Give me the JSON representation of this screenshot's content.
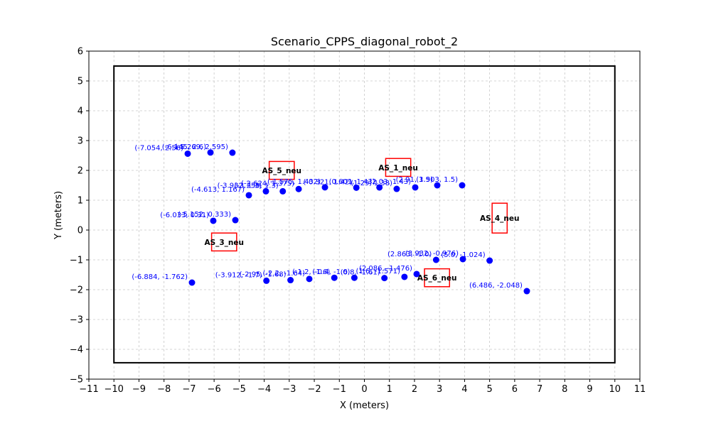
{
  "chart_data": {
    "type": "scatter",
    "title": "Scenario_CPPS_diagonal_robot_2",
    "xlabel": "X (meters)",
    "ylabel": "Y (meters)",
    "xlim": [
      -11,
      11
    ],
    "ylim": [
      -5,
      6
    ],
    "xticks": [
      -11,
      -10,
      -9,
      -8,
      -7,
      -6,
      -5,
      -4,
      -3,
      -2,
      -1,
      0,
      1,
      2,
      3,
      4,
      5,
      6,
      7,
      8,
      9,
      10,
      11
    ],
    "yticks": [
      -5,
      -4,
      -3,
      -2,
      -1,
      0,
      1,
      2,
      3,
      4,
      5,
      6
    ],
    "grid": true,
    "boundary": {
      "x": [
        -10,
        10
      ],
      "y": [
        -4.45,
        5.5
      ],
      "color": "#000000"
    },
    "point_color": "#0000ff",
    "station_color": "#ff0000",
    "points": [
      {
        "x": -7.054,
        "y": 2.56,
        "label": "(-7.054, 2.56)"
      },
      {
        "x": -6.145,
        "y": 2.6,
        "label": "(-6.145, 2.6)"
      },
      {
        "x": -5.269,
        "y": 2.595,
        "label": "(-5.269, 2.595)"
      },
      {
        "x": -3.932,
        "y": 1.3,
        "label": "(-3.932, 1.3)"
      },
      {
        "x": -3.258,
        "y": 1.3,
        "label": "(-3.258, 1.3)"
      },
      {
        "x": -2.624,
        "y": 1.375,
        "label": "(-2.624, 1.375)"
      },
      {
        "x": -4.613,
        "y": 1.167,
        "label": "(-4.613, 1.167)"
      },
      {
        "x": -1.575,
        "y": 1.432,
        "label": "(-1.575, 1.432)"
      },
      {
        "x": -0.321,
        "y": 1.42,
        "label": "(-0.321, 1.42)"
      },
      {
        "x": 0.601,
        "y": 1.43,
        "label": "(0.601, 1.43)"
      },
      {
        "x": 1.29,
        "y": 1.38,
        "label": "(1.29, 1.38)"
      },
      {
        "x": 2.03,
        "y": 1.43,
        "label": "(2.03, 1.43)"
      },
      {
        "x": 2.91,
        "y": 1.5,
        "label": "(2.91, 1.5)"
      },
      {
        "x": 3.903,
        "y": 1.5,
        "label": "(3.903, 1.5)"
      },
      {
        "x": -6.033,
        "y": 0.31,
        "label": "(-6.033, 0.31)"
      },
      {
        "x": -5.152,
        "y": 0.333,
        "label": "(-5.152, 0.333)"
      },
      {
        "x": -6.884,
        "y": -1.762,
        "label": "(-6.884, -1.762)"
      },
      {
        "x": -3.912,
        "y": -1.7,
        "label": "(-3.912, -1.7)"
      },
      {
        "x": -2.95,
        "y": -1.68,
        "label": "(-2.95, -1.68)"
      },
      {
        "x": -2.2,
        "y": -1.64,
        "label": "(-2.2, -1.64)"
      },
      {
        "x": -1.2,
        "y": -1.6,
        "label": "(-1.2, -1.6)"
      },
      {
        "x": -0.4,
        "y": -1.6,
        "label": "(-0.4, -1.6)"
      },
      {
        "x": 0.8,
        "y": -1.61,
        "label": "(0.8, -1.61)"
      },
      {
        "x": 1.6,
        "y": -1.571,
        "label": "(1.6, -1.571)"
      },
      {
        "x": 2.086,
        "y": -1.476,
        "label": "(2.086, -1.476)"
      },
      {
        "x": 2.863,
        "y": -1.0,
        "label": "(2.863, -1.0)"
      },
      {
        "x": 3.932,
        "y": -0.976,
        "label": "(3.932, -0.976)"
      },
      {
        "x": 5.0,
        "y": -1.024,
        "label": "(5.0, -1.024)"
      },
      {
        "x": 6.486,
        "y": -2.048,
        "label": "(6.486, -2.048)"
      }
    ],
    "stations": [
      {
        "name": "AS_5_neu",
        "x": -3.3,
        "y": 2.0,
        "w": 1.0,
        "h": 0.6
      },
      {
        "name": "AS_1_neu",
        "x": 1.35,
        "y": 2.1,
        "w": 1.0,
        "h": 0.6
      },
      {
        "name": "AS_4_neu",
        "x": 5.4,
        "y": 0.4,
        "w": 0.6,
        "h": 1.0
      },
      {
        "name": "AS_3_neu",
        "x": -5.6,
        "y": -0.4,
        "w": 1.0,
        "h": 0.6
      },
      {
        "name": "AS_6_neu",
        "x": 2.9,
        "y": -1.6,
        "w": 1.0,
        "h": 0.6
      }
    ]
  }
}
